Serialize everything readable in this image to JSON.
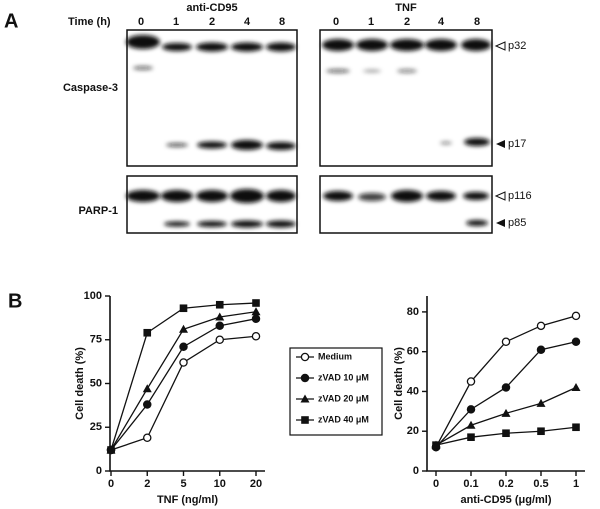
{
  "panel_a": {
    "label": "A",
    "time_label": "Time (h)",
    "groups": [
      {
        "title": "anti-CD95",
        "lanes": [
          "0",
          "1",
          "2",
          "4",
          "8"
        ]
      },
      {
        "title": "TNF",
        "lanes": [
          "0",
          "1",
          "2",
          "4",
          "8"
        ]
      }
    ],
    "rows": [
      {
        "label": "Caspase-3",
        "markers": [
          "p32",
          "p17"
        ]
      },
      {
        "label": "PARP-1",
        "markers": [
          "p116",
          "p85"
        ]
      }
    ]
  },
  "panel_b": {
    "label": "B"
  },
  "chart_data": [
    {
      "type": "line",
      "xlabel": "TNF (ng/ml)",
      "ylabel": "Cell death (%)",
      "categories": [
        "0",
        "2",
        "5",
        "10",
        "20"
      ],
      "ylim": [
        0,
        100
      ],
      "yticks": [
        0,
        25,
        50,
        75,
        100
      ],
      "series": [
        {
          "name": "Medium",
          "color": "#111111",
          "marker": "circle-open",
          "values": [
            12,
            19,
            62,
            75,
            77
          ]
        },
        {
          "name": "zVAD 10 μM",
          "color": "#111111",
          "marker": "circle",
          "values": [
            12,
            38,
            71,
            83,
            87
          ]
        },
        {
          "name": "zVAD 20 μM",
          "color": "#111111",
          "marker": "triangle",
          "values": [
            12,
            47,
            81,
            88,
            91
          ]
        },
        {
          "name": "zVAD 40 μM",
          "color": "#111111",
          "marker": "square",
          "values": [
            12,
            79,
            93,
            95,
            96
          ]
        }
      ]
    },
    {
      "type": "line",
      "xlabel": "anti-CD95 (μg/ml)",
      "ylabel": "Cell death (%)",
      "categories": [
        "0",
        "0.1",
        "0.2",
        "0.5",
        "1"
      ],
      "ylim": [
        0,
        88
      ],
      "yticks": [
        0,
        20,
        40,
        60,
        80
      ],
      "series": [
        {
          "color": "#111111",
          "marker": "circle-open",
          "values": [
            12,
            45,
            65,
            73,
            78
          ]
        },
        {
          "color": "#111111",
          "marker": "circle",
          "values": [
            12,
            31,
            42,
            61,
            65
          ]
        },
        {
          "color": "#111111",
          "marker": "triangle",
          "values": [
            13,
            23,
            29,
            34,
            42
          ]
        },
        {
          "color": "#111111",
          "marker": "square",
          "values": [
            13,
            17,
            19,
            20,
            22
          ]
        }
      ]
    }
  ]
}
